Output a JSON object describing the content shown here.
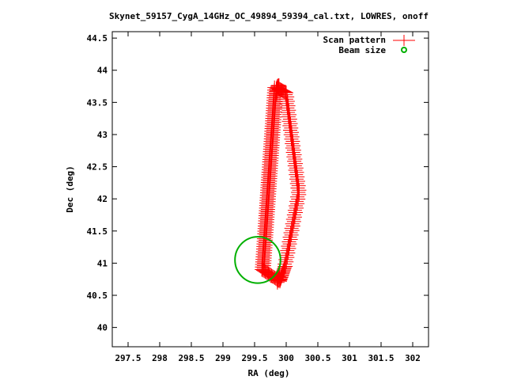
{
  "chart_data": {
    "type": "scatter",
    "title": "Skynet_59157_CygA_14GHz_OC_49894_59394_cal.txt, LOWRES, onoff",
    "xlabel": "RA (deg)",
    "ylabel": "Dec (deg)",
    "xlim": [
      297.25,
      302.25
    ],
    "ylim": [
      39.7,
      44.6
    ],
    "xticks": [
      "297.5",
      "298",
      "298.5",
      "299",
      "299.5",
      "300",
      "300.5",
      "301",
      "301.5",
      "302"
    ],
    "yticks": [
      "40",
      "40.5",
      "41",
      "41.5",
      "42",
      "42.5",
      "43",
      "43.5",
      "44",
      "44.5"
    ],
    "legend": {
      "placement": "top-right"
    },
    "series": [
      {
        "name": "Scan pattern",
        "color": "#ff0000",
        "marker": "plus",
        "segments": [
          {
            "from": [
              299.63,
              40.9
            ],
            "to": [
              299.83,
              43.73
            ],
            "step": 0.02,
            "jitter_x": 0.015
          },
          {
            "from": [
              299.85,
              43.73
            ],
            "to": [
              300.0,
              43.65
            ],
            "step": 0.015,
            "jitter_x": 0.0
          },
          {
            "from": [
              300.0,
              43.62
            ],
            "to": [
              300.2,
              42.1
            ],
            "step": 0.035,
            "jitter_x": 0.01
          },
          {
            "from": [
              300.2,
              42.1
            ],
            "to": [
              299.98,
              40.95
            ],
            "step": 0.035,
            "jitter_x": 0.01
          },
          {
            "from": [
              299.98,
              40.95
            ],
            "to": [
              299.9,
              40.72
            ],
            "step": 0.02,
            "jitter_x": 0.0
          },
          {
            "from": [
              299.9,
              40.72
            ],
            "to": [
              299.62,
              40.9
            ],
            "step": 0.02,
            "jitter_x": 0.0
          }
        ],
        "clusters": [
          {
            "center": [
              299.87,
              43.7
            ],
            "count": 9,
            "spread": [
              0.04,
              0.14
            ]
          },
          {
            "center": [
              299.88,
              40.75
            ],
            "count": 9,
            "spread": [
              0.04,
              0.1
            ]
          }
        ]
      },
      {
        "name": "Beam size",
        "color": "#00b000",
        "marker": "circle",
        "circle": {
          "center": [
            299.55,
            41.05
          ],
          "radius": 0.36
        }
      }
    ]
  }
}
